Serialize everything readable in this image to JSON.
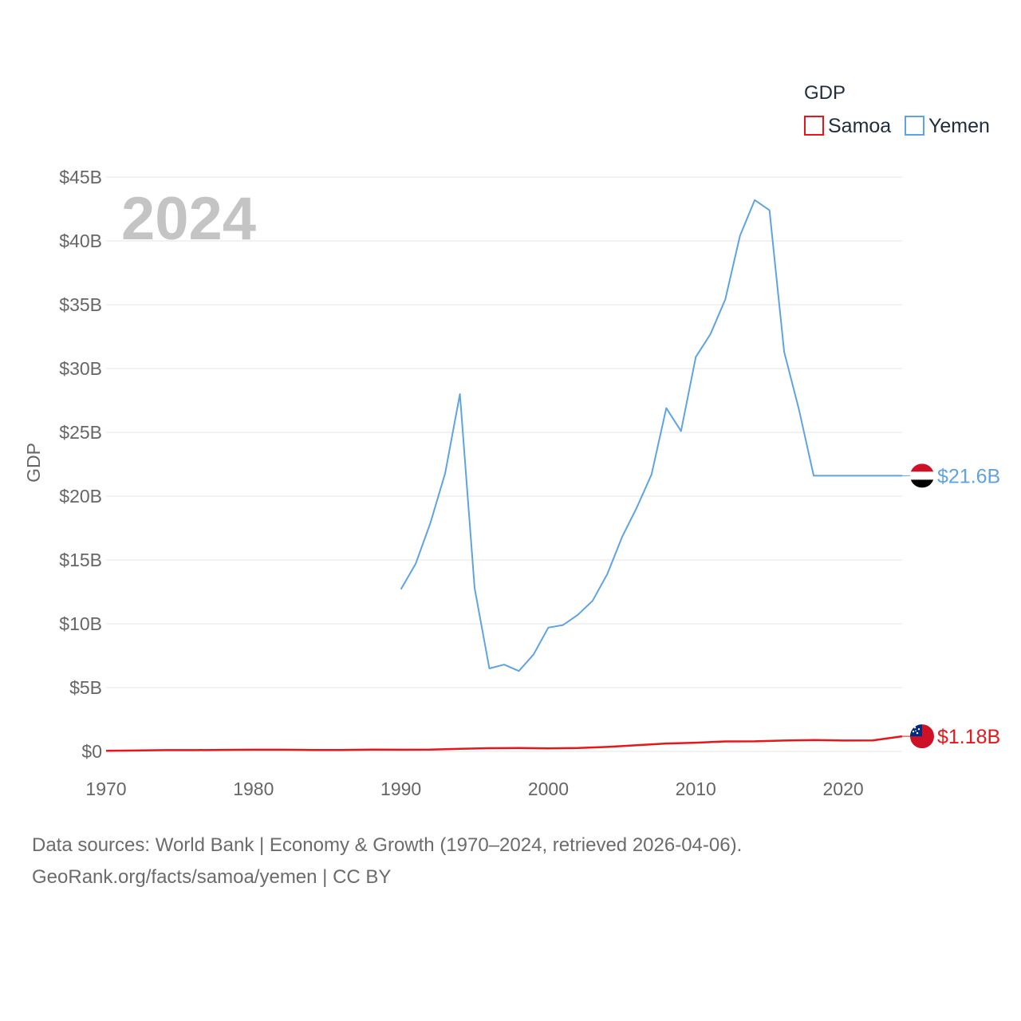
{
  "legend": {
    "title": "GDP"
  },
  "source": {
    "line1": "Data sources: World Bank | Economy & Growth (1970–2024, retrieved 2026-04-06).",
    "line2": "GeoRank.org/facts/samoa/yemen | CC BY"
  },
  "colors": {
    "samoa": "#e8161a",
    "yemen": "#5fa4e0",
    "grid": "#e6e6e6",
    "year": "#c4c4c4"
  },
  "icons": {
    "samoa": "samoa-flag-icon",
    "yemen": "yemen-flag-icon"
  },
  "chart_data": {
    "type": "line",
    "title": "2024",
    "xlabel": "",
    "ylabel": "GDP",
    "xlim": [
      1970,
      2024
    ],
    "ylim": [
      0,
      45
    ],
    "x_ticks": [
      1970,
      1980,
      1990,
      2000,
      2010,
      2020
    ],
    "y_ticks": [
      0,
      5,
      10,
      15,
      20,
      25,
      30,
      35,
      40,
      45
    ],
    "y_tick_labels": [
      "$0",
      "$5B",
      "$10B",
      "$15B",
      "$20B",
      "$25B",
      "$30B",
      "$35B",
      "$40B",
      "$45B"
    ],
    "unit": "billions USD",
    "series": [
      {
        "name": "Samoa",
        "color": "#e8161a",
        "end_label": "$1.18B",
        "x": [
          1970,
          1972,
          1974,
          1976,
          1978,
          1980,
          1982,
          1984,
          1986,
          1988,
          1990,
          1992,
          1994,
          1996,
          1998,
          2000,
          2002,
          2004,
          2006,
          2008,
          2010,
          2012,
          2014,
          2016,
          2018,
          2020,
          2022,
          2024
        ],
        "values": [
          0.05,
          0.07,
          0.1,
          0.1,
          0.12,
          0.13,
          0.13,
          0.11,
          0.11,
          0.14,
          0.13,
          0.14,
          0.2,
          0.25,
          0.27,
          0.24,
          0.26,
          0.35,
          0.48,
          0.62,
          0.68,
          0.78,
          0.79,
          0.85,
          0.89,
          0.85,
          0.86,
          1.18
        ]
      },
      {
        "name": "Yemen",
        "color": "#5fa4e0",
        "end_label": "$21.6B",
        "x": [
          1990,
          1991,
          1992,
          1993,
          1994,
          1995,
          1996,
          1997,
          1998,
          1999,
          2000,
          2001,
          2002,
          2003,
          2004,
          2005,
          2006,
          2007,
          2008,
          2009,
          2010,
          2011,
          2012,
          2013,
          2014,
          2015,
          2016,
          2017,
          2018,
          2019,
          2020,
          2021,
          2022,
          2023,
          2024
        ],
        "values": [
          12.7,
          14.7,
          17.9,
          21.8,
          28.0,
          12.8,
          6.5,
          6.8,
          6.3,
          7.6,
          9.7,
          9.9,
          10.7,
          11.8,
          13.9,
          16.8,
          19.1,
          21.7,
          26.9,
          25.1,
          30.9,
          32.7,
          35.4,
          40.4,
          43.2,
          42.4,
          31.3,
          26.8,
          21.6,
          21.6,
          21.6,
          21.6,
          21.6,
          21.6,
          21.6
        ]
      }
    ]
  }
}
